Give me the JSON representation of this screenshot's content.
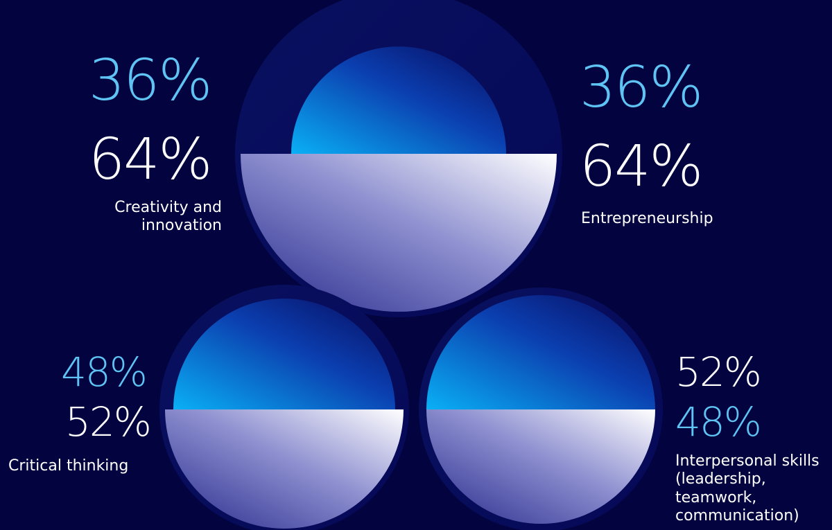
{
  "colors": {
    "background": "#02033f",
    "top_value": "#5fc4f4",
    "bottom_value": "#ffffff",
    "top_gradient_start": "#0ab0f5",
    "top_gradient_end": "#0a0d6b",
    "bottom_gradient_start": "#ffffff",
    "bottom_gradient_end": "#2b2d8c"
  },
  "chart_data": [
    {
      "type": "pie",
      "label": "Creativity and innovation",
      "top_value": "36%",
      "bottom_value": "64%",
      "slices": [
        36,
        64
      ]
    },
    {
      "type": "pie",
      "label": "Entrepreneurship",
      "top_value": "36%",
      "bottom_value": "64%",
      "slices": [
        36,
        64
      ]
    },
    {
      "type": "pie",
      "label": "Critical thinking",
      "top_value": "48%",
      "bottom_value": "52%",
      "slices": [
        48,
        52
      ]
    },
    {
      "type": "pie",
      "label": "Interpersonal skills (leadership, teamwork, communication)",
      "top_value": "52%",
      "bottom_value": "48%",
      "slices": [
        52,
        48
      ]
    }
  ]
}
